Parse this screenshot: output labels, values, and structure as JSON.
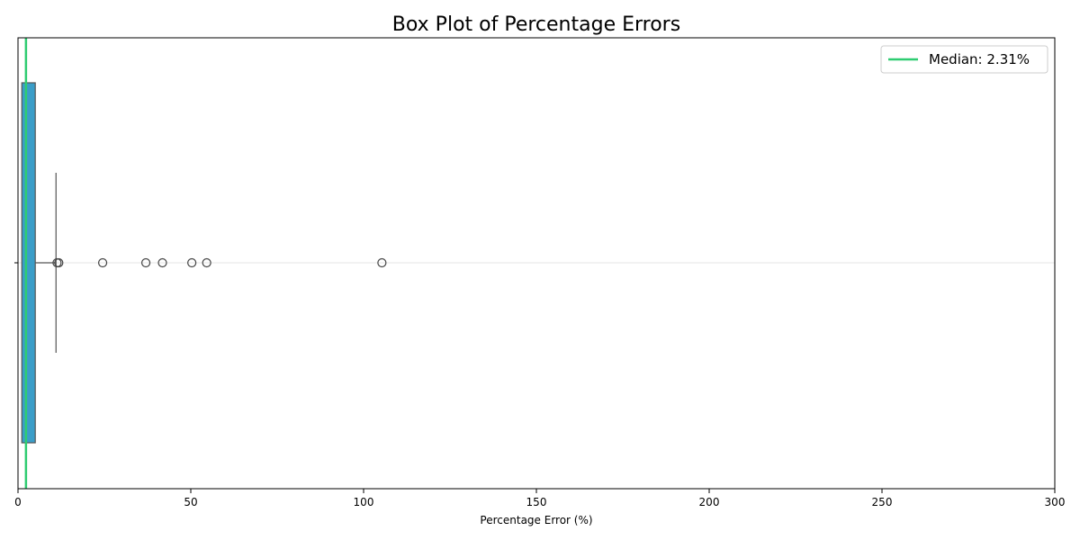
{
  "chart_data": {
    "type": "box",
    "orientation": "horizontal",
    "title": "Box Plot of Percentage Errors",
    "xlabel": "Percentage Error (%)",
    "ylabel": "",
    "xlim": [
      0,
      300
    ],
    "xticks": [
      0,
      50,
      100,
      150,
      200,
      250,
      300
    ],
    "xtick_labels": [
      "0",
      "50",
      "100",
      "150",
      "200",
      "250",
      "300"
    ],
    "grid": "horizontal-at-box-center",
    "box": {
      "q1": 1.1,
      "median": 2.31,
      "q3": 5.0,
      "whisker_low": 0.0,
      "whisker_high": 11.0,
      "fliers": [
        11.3,
        11.8,
        24.5,
        37.0,
        41.8,
        50.3,
        54.6,
        105.3
      ]
    },
    "median_line": {
      "value": 2.31,
      "color": "#2ecc71"
    },
    "legend": {
      "position": "top-right",
      "entries": [
        {
          "label": "Median: 2.31%",
          "color": "#2ecc71"
        }
      ]
    },
    "colors": {
      "box_fill": "#3a9dc8",
      "box_edge": "#555555",
      "flier_edge": "#444444"
    }
  }
}
